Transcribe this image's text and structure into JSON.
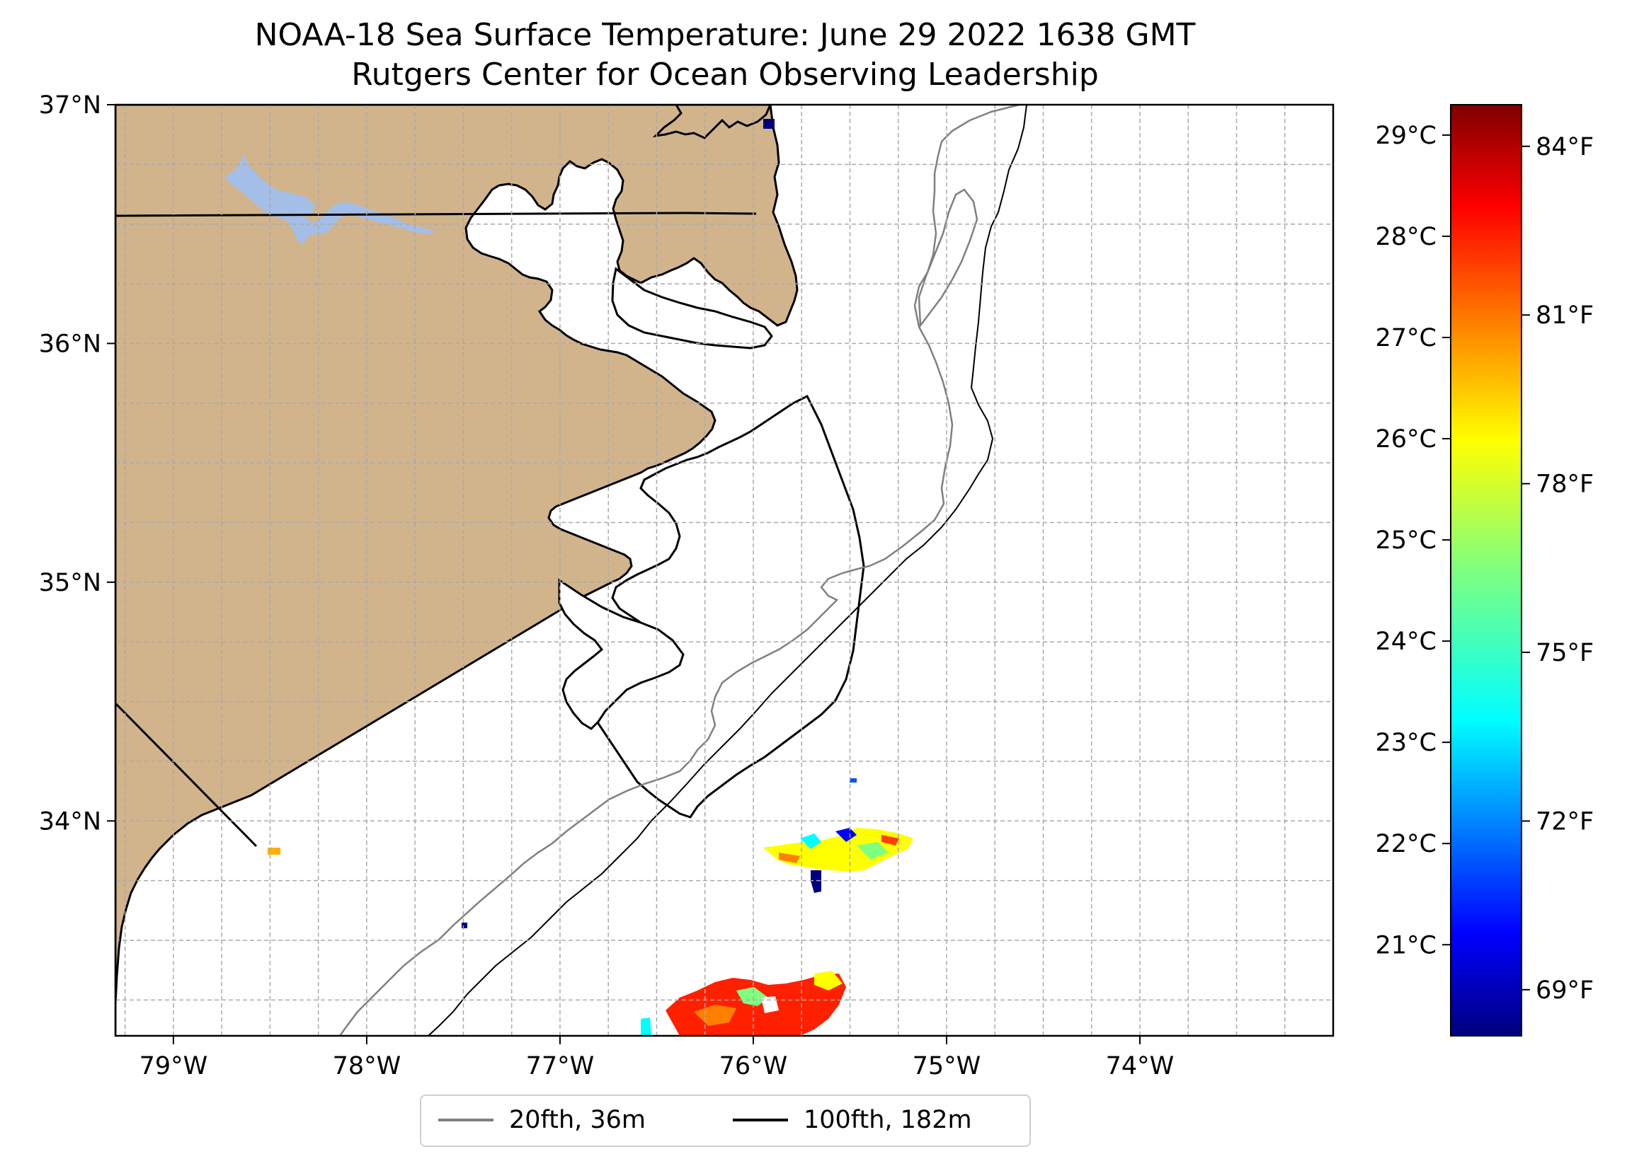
{
  "title": {
    "line1": "NOAA-18 Sea Surface Temperature: June 29 2022 1638 GMT",
    "line2": "Rutgers Center for Ocean Observing Leadership"
  },
  "map": {
    "lon_range": [
      -79.3,
      -73.0
    ],
    "lat_range": [
      33.1,
      37.0
    ],
    "lon_ticks": [
      {
        "value": -79,
        "label": "79°W"
      },
      {
        "value": -78,
        "label": "78°W"
      },
      {
        "value": -77,
        "label": "77°W"
      },
      {
        "value": -76,
        "label": "76°W"
      },
      {
        "value": -75,
        "label": "75°W"
      },
      {
        "value": -74,
        "label": "74°W"
      }
    ],
    "lat_ticks": [
      {
        "value": 37,
        "label": "37°N"
      },
      {
        "value": 36,
        "label": "36°N"
      },
      {
        "value": 35,
        "label": "35°N"
      },
      {
        "value": 34,
        "label": "34°N"
      }
    ],
    "grid": true,
    "land_color": "#d2b48c",
    "lake_color": "#a3bfe8"
  },
  "colorbar": {
    "celsius_range": [
      20.1,
      29.3
    ],
    "celsius_ticks": [
      {
        "value": 21,
        "label": "21°C"
      },
      {
        "value": 22,
        "label": "22°C"
      },
      {
        "value": 23,
        "label": "23°C"
      },
      {
        "value": 24,
        "label": "24°C"
      },
      {
        "value": 25,
        "label": "25°C"
      },
      {
        "value": 26,
        "label": "26°C"
      },
      {
        "value": 27,
        "label": "27°C"
      },
      {
        "value": 28,
        "label": "28°C"
      },
      {
        "value": 29,
        "label": "29°C"
      }
    ],
    "fahrenheit_ticks": [
      {
        "value": 69,
        "label": "69°F"
      },
      {
        "value": 72,
        "label": "72°F"
      },
      {
        "value": 75,
        "label": "75°F"
      },
      {
        "value": 78,
        "label": "78°F"
      },
      {
        "value": 81,
        "label": "81°F"
      },
      {
        "value": 84,
        "label": "84°F"
      }
    ],
    "colormap": "jet"
  },
  "legend": {
    "items": [
      {
        "label": "20fth, 36m",
        "color": "#808080"
      },
      {
        "label": "100fth, 182m",
        "color": "#000000"
      }
    ]
  }
}
